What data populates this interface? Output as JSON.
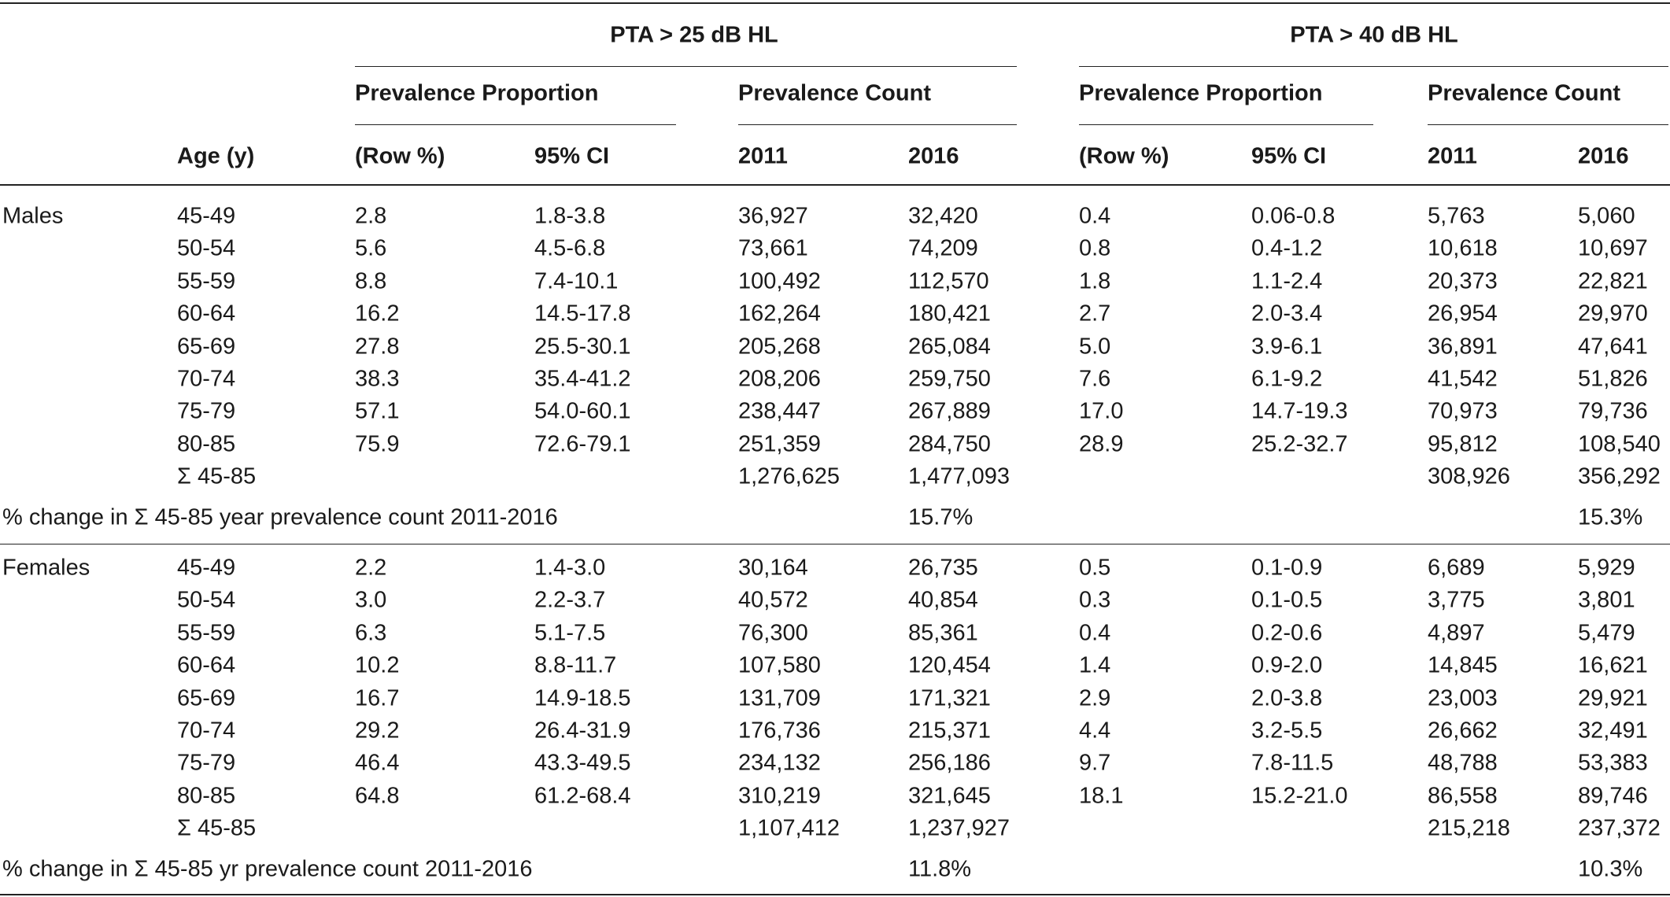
{
  "header": {
    "groups": [
      "PTA > 25 dB HL",
      "PTA > 40 dB HL"
    ],
    "subgroups": [
      "Prevalence Proportion",
      "Prevalence Count",
      "Prevalence Proportion",
      "Prevalence Count"
    ],
    "columns": [
      "Age (y)",
      "(Row %)",
      "95% CI",
      "2011",
      "2016",
      "(Row %)",
      "95% CI",
      "2011",
      "2016"
    ]
  },
  "sections": [
    {
      "label": "Males",
      "rows": [
        [
          "45-49",
          "2.8",
          "1.8-3.8",
          "36,927",
          "32,420",
          "0.4",
          "0.06-0.8",
          "5,763",
          "5,060"
        ],
        [
          "50-54",
          "5.6",
          "4.5-6.8",
          "73,661",
          "74,209",
          "0.8",
          "0.4-1.2",
          "10,618",
          "10,697"
        ],
        [
          "55-59",
          "8.8",
          "7.4-10.1",
          "100,492",
          "112,570",
          "1.8",
          "1.1-2.4",
          "20,373",
          "22,821"
        ],
        [
          "60-64",
          "16.2",
          "14.5-17.8",
          "162,264",
          "180,421",
          "2.7",
          "2.0-3.4",
          "26,954",
          "29,970"
        ],
        [
          "65-69",
          "27.8",
          "25.5-30.1",
          "205,268",
          "265,084",
          "5.0",
          "3.9-6.1",
          "36,891",
          "47,641"
        ],
        [
          "70-74",
          "38.3",
          "35.4-41.2",
          "208,206",
          "259,750",
          "7.6",
          "6.1-9.2",
          "41,542",
          "51,826"
        ],
        [
          "75-79",
          "57.1",
          "54.0-60.1",
          "238,447",
          "267,889",
          "17.0",
          "14.7-19.3",
          "70,973",
          "79,736"
        ],
        [
          "80-85",
          "75.9",
          "72.6-79.1",
          "251,359",
          "284,750",
          "28.9",
          "25.2-32.7",
          "95,812",
          "108,540"
        ]
      ],
      "total": {
        "label": "Σ 45-85",
        "count_2011": "1,276,625",
        "count_2016": "1,477,093",
        "count40_2011": "308,926",
        "count40_2016": "356,292"
      },
      "change": {
        "label": "% change in Σ 45-85 year prevalence count 2011-2016",
        "pta25": "15.7%",
        "pta40": "15.3%"
      }
    },
    {
      "label": "Females",
      "rows": [
        [
          "45-49",
          "2.2",
          "1.4-3.0",
          "30,164",
          "26,735",
          "0.5",
          "0.1-0.9",
          "6,689",
          "5,929"
        ],
        [
          "50-54",
          "3.0",
          "2.2-3.7",
          "40,572",
          "40,854",
          "0.3",
          "0.1-0.5",
          "3,775",
          "3,801"
        ],
        [
          "55-59",
          "6.3",
          "5.1-7.5",
          "76,300",
          "85,361",
          "0.4",
          "0.2-0.6",
          "4,897",
          "5,479"
        ],
        [
          "60-64",
          "10.2",
          "8.8-11.7",
          "107,580",
          "120,454",
          "1.4",
          "0.9-2.0",
          "14,845",
          "16,621"
        ],
        [
          "65-69",
          "16.7",
          "14.9-18.5",
          "131,709",
          "171,321",
          "2.9",
          "2.0-3.8",
          "23,003",
          "29,921"
        ],
        [
          "70-74",
          "29.2",
          "26.4-31.9",
          "176,736",
          "215,371",
          "4.4",
          "3.2-5.5",
          "26,662",
          "32,491"
        ],
        [
          "75-79",
          "46.4",
          "43.3-49.5",
          "234,132",
          "256,186",
          "9.7",
          "7.8-11.5",
          "48,788",
          "53,383"
        ],
        [
          "80-85",
          "64.8",
          "61.2-68.4",
          "310,219",
          "321,645",
          "18.1",
          "15.2-21.0",
          "86,558",
          "89,746"
        ]
      ],
      "total": {
        "label": "Σ 45-85",
        "count_2011": "1,107,412",
        "count_2016": "1,237,927",
        "count40_2011": "215,218",
        "count40_2016": "237,372"
      },
      "change": {
        "label": "% change in Σ 45-85 yr prevalence count 2011-2016",
        "pta25": "11.8%",
        "pta40": "10.3%"
      }
    }
  ]
}
